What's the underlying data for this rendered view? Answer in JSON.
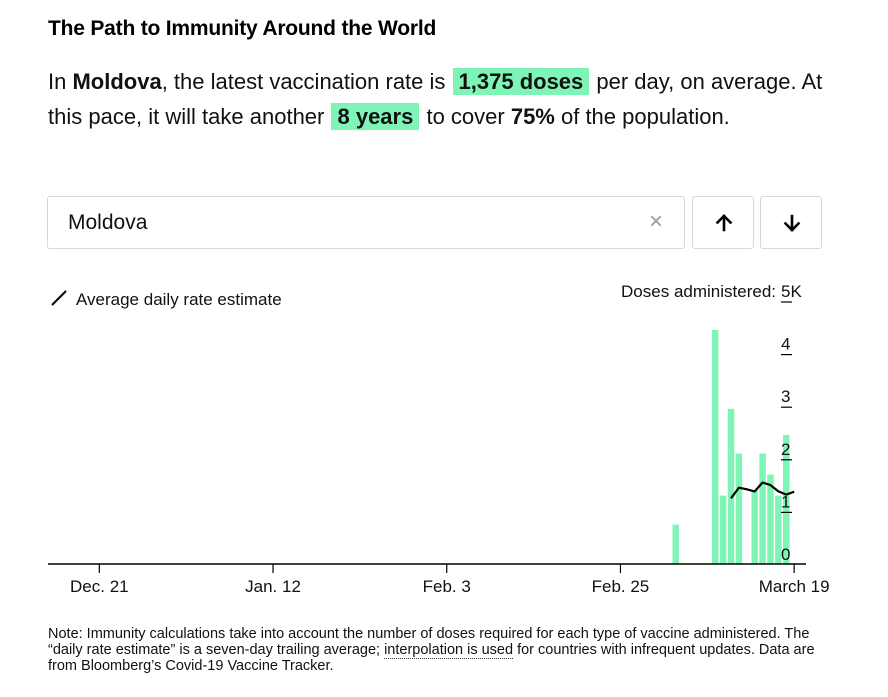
{
  "header": {
    "title": "The Path to Immunity Around the World"
  },
  "summary": {
    "p1": "In ",
    "country": "Moldova",
    "p2": ", the latest vaccination rate is ",
    "rate": "1,375 doses",
    "p3": " per day, on average. At this pace, it will take another ",
    "time": "8 years",
    "p4": " to cover ",
    "coverage": "75%",
    "p5": " of the population."
  },
  "search": {
    "value": "Moldova",
    "clear_label": "×"
  },
  "icons": {
    "clear": "close-icon",
    "up": "arrow-up-icon",
    "down": "arrow-down-icon",
    "legend": "line-icon"
  },
  "legend": {
    "label": "Average daily rate estimate"
  },
  "chart_data": {
    "type": "bar",
    "colors": {
      "bars": "#7ef5b7",
      "line": "#000000",
      "highlight": "#7ef5b7"
    },
    "y_title": "Doses administered:",
    "y_ticks": [
      "0",
      "1",
      "2",
      "3",
      "4",
      "5K"
    ],
    "ylim": [
      0,
      5000
    ],
    "x_ticks": [
      "Dec. 21",
      "Jan. 12",
      "Feb. 3",
      "Feb. 25",
      "March 19"
    ],
    "x_tick_days": [
      0,
      22,
      44,
      66,
      88
    ],
    "xlim_days": [
      -6.5,
      89.5
    ],
    "bars": [
      {
        "day": 73,
        "value": 750
      },
      {
        "day": 78,
        "value": 4450
      },
      {
        "day": 79,
        "value": 1300
      },
      {
        "day": 80,
        "value": 2950
      },
      {
        "day": 81,
        "value": 2100
      },
      {
        "day": 83,
        "value": 1400
      },
      {
        "day": 84,
        "value": 2100
      },
      {
        "day": 85,
        "value": 1700
      },
      {
        "day": 86,
        "value": 1300
      },
      {
        "day": 87,
        "value": 2450
      }
    ],
    "average_line": [
      {
        "day": 80,
        "value": 1250
      },
      {
        "day": 81,
        "value": 1450
      },
      {
        "day": 82,
        "value": 1420
      },
      {
        "day": 83,
        "value": 1380
      },
      {
        "day": 84,
        "value": 1550
      },
      {
        "day": 85,
        "value": 1500
      },
      {
        "day": 86,
        "value": 1380
      },
      {
        "day": 87,
        "value": 1320
      },
      {
        "day": 88,
        "value": 1375
      }
    ]
  },
  "note": {
    "p1": "Note: Immunity calculations take into account the number of doses required for each type of vaccine administered. The “daily rate estimate” is a seven-day trailing average; ",
    "link": "interpolation is used",
    "p2": " for countries with infrequent updates. Data are from Bloomberg’s Covid-19 Vaccine Tracker."
  }
}
